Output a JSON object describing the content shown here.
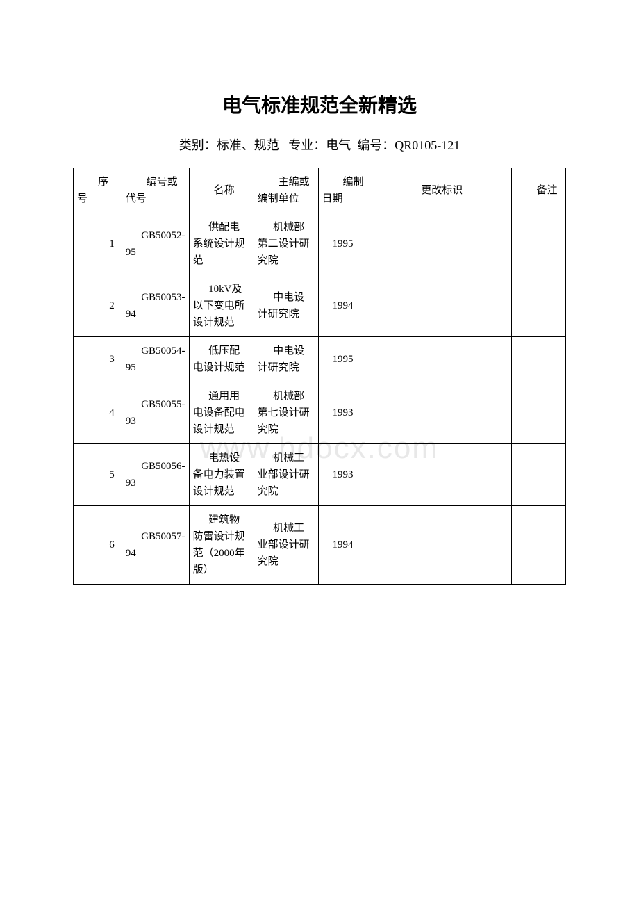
{
  "title": "电气标准规范全新精选",
  "subtitle_prefix": "类别：",
  "subtitle_category": "标准、规范",
  "subtitle_major_label": "专业：",
  "subtitle_major": "电气",
  "subtitle_code_label": "编号：",
  "subtitle_code": "QR0105-121",
  "watermark": "www.bdocx.com",
  "columns": {
    "seq": "序号",
    "code": "编号或代号",
    "name": "名称",
    "editor": "主编或编制单位",
    "date": "编制日期",
    "change": "更改标识",
    "note": "备注"
  },
  "rows": [
    {
      "seq": "1",
      "code": "GB50052-95",
      "name": "供配电系统设计规范",
      "editor": "机械部第二设计研究院",
      "date": "1995"
    },
    {
      "seq": "2",
      "code": "GB50053-94",
      "name": "10kV及以下变电所设计规范",
      "editor": "中电设计研究院",
      "date": "1994"
    },
    {
      "seq": "3",
      "code": "GB50054-95",
      "name": "低压配电设计规范",
      "editor": "中电设计研究院",
      "date": "1995"
    },
    {
      "seq": "4",
      "code": "GB50055-93",
      "name": "通用用电设备配电设计规范",
      "editor": "机械部第七设计研究院",
      "date": "1993"
    },
    {
      "seq": "5",
      "code": "GB50056-93",
      "name": "电热设备电力装置设计规范",
      "editor": "机械工业部设计研究院",
      "date": "1993"
    },
    {
      "seq": "6",
      "code": "GB50057-94",
      "name": "建筑物防雷设计规范（2000年版）",
      "editor": "机械工业部设计研究院",
      "date": "1994"
    }
  ]
}
